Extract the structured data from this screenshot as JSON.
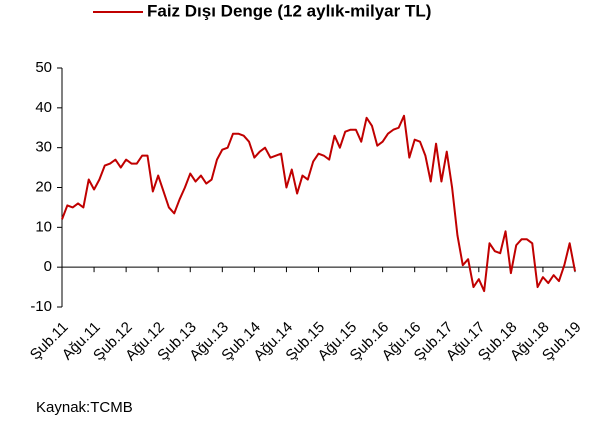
{
  "chart_data": {
    "type": "line",
    "categories": [
      "Şub.11",
      null,
      null,
      null,
      null,
      null,
      "Ağu.11",
      null,
      null,
      null,
      null,
      null,
      "Şub.12",
      null,
      null,
      null,
      null,
      null,
      "Ağu.12",
      null,
      null,
      null,
      null,
      null,
      "Şub.13",
      null,
      null,
      null,
      null,
      null,
      "Ağu.13",
      null,
      null,
      null,
      null,
      null,
      "Şub.14",
      null,
      null,
      null,
      null,
      null,
      "Ağu.14",
      null,
      null,
      null,
      null,
      null,
      "Şub.15",
      null,
      null,
      null,
      null,
      null,
      "Ağu.15",
      null,
      null,
      null,
      null,
      null,
      "Şub.16",
      null,
      null,
      null,
      null,
      null,
      "Ağu.16",
      null,
      null,
      null,
      null,
      null,
      "Şub.17",
      null,
      null,
      null,
      null,
      null,
      "Ağu.17",
      null,
      null,
      null,
      null,
      null,
      "Şub.18",
      null,
      null,
      null,
      null,
      null,
      "Ağu.18",
      null,
      null,
      null,
      null,
      null,
      "Şub.19"
    ],
    "series": [
      {
        "name": "Faiz Dışı Denge (12 aylık-milyar TL)",
        "color": "#c00000",
        "values": [
          12,
          15.5,
          15,
          16,
          15,
          22,
          19.5,
          22,
          25.5,
          26,
          27,
          25,
          27,
          26,
          26,
          28,
          28,
          19,
          23,
          19,
          15,
          13.5,
          17,
          20,
          23.5,
          21.5,
          23,
          21,
          22,
          27,
          29.5,
          30,
          33.5,
          33.5,
          33,
          31.5,
          27.5,
          29,
          30,
          27.5,
          28,
          28.5,
          20,
          24.5,
          18.5,
          23,
          22,
          26.5,
          28.5,
          28,
          27,
          33,
          30,
          34,
          34.5,
          34.5,
          31.5,
          37.5,
          35.5,
          30.5,
          31.5,
          33.5,
          34.5,
          35,
          38,
          27.5,
          32,
          31.5,
          28,
          21.5,
          31,
          21.5,
          29,
          20,
          8,
          0.5,
          2,
          -5,
          -3,
          -6,
          6,
          4,
          3.5,
          9,
          -1.5,
          5.5,
          7,
          7,
          6,
          -5,
          -2.5,
          -4,
          -2,
          -3.5,
          0.5,
          6,
          -1
        ]
      }
    ],
    "ylim": [
      -10,
      50
    ],
    "yticks": [
      -10,
      0,
      10,
      20,
      30,
      40,
      50
    ],
    "source": "Kaynak:TCMB"
  }
}
